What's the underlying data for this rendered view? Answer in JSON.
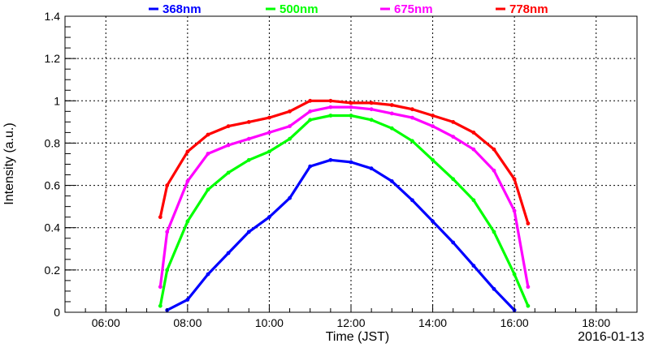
{
  "chart_data": {
    "type": "scatter",
    "title": "",
    "xlabel": "Time (JST)",
    "ylabel": "Intensity (a.u.)",
    "date_label": "2016-01-13",
    "xlim": [
      "05:00",
      "19:00"
    ],
    "ylim": [
      0,
      1.4
    ],
    "x_ticks": [
      "06:00",
      "08:00",
      "10:00",
      "12:00",
      "14:00",
      "16:00",
      "18:00"
    ],
    "y_ticks": [
      "0",
      "0.2",
      "0.4",
      "0.6",
      "0.8",
      "1",
      "1.2",
      "1.4"
    ],
    "grid": true,
    "legend_position": "top",
    "series": [
      {
        "name": "368nm",
        "color": "#0000ff",
        "x": [
          "07:30",
          "08:00",
          "08:30",
          "09:00",
          "09:30",
          "10:00",
          "10:30",
          "11:00",
          "11:30",
          "12:00",
          "12:30",
          "13:00",
          "13:30",
          "14:00",
          "14:30",
          "15:00",
          "15:30",
          "16:00"
        ],
        "y": [
          0.01,
          0.06,
          0.18,
          0.28,
          0.38,
          0.45,
          0.54,
          0.69,
          0.72,
          0.71,
          0.68,
          0.62,
          0.53,
          0.43,
          0.33,
          0.22,
          0.11,
          0.01
        ]
      },
      {
        "name": "500nm",
        "color": "#00ff00",
        "x": [
          "07:20",
          "07:30",
          "08:00",
          "08:30",
          "09:00",
          "09:30",
          "10:00",
          "10:30",
          "11:00",
          "11:30",
          "12:00",
          "12:30",
          "13:00",
          "13:30",
          "14:00",
          "14:30",
          "15:00",
          "15:30",
          "16:00",
          "16:20"
        ],
        "y": [
          0.03,
          0.2,
          0.43,
          0.58,
          0.66,
          0.72,
          0.76,
          0.82,
          0.91,
          0.93,
          0.93,
          0.91,
          0.87,
          0.81,
          0.72,
          0.63,
          0.53,
          0.38,
          0.18,
          0.03
        ]
      },
      {
        "name": "675nm",
        "color": "#ff00ff",
        "x": [
          "07:20",
          "07:30",
          "08:00",
          "08:30",
          "09:00",
          "09:30",
          "10:00",
          "10:30",
          "11:00",
          "11:30",
          "12:00",
          "12:30",
          "13:00",
          "13:30",
          "14:00",
          "14:30",
          "15:00",
          "15:30",
          "16:00",
          "16:20"
        ],
        "y": [
          0.12,
          0.38,
          0.62,
          0.75,
          0.79,
          0.82,
          0.85,
          0.88,
          0.95,
          0.97,
          0.97,
          0.96,
          0.94,
          0.92,
          0.88,
          0.83,
          0.77,
          0.67,
          0.48,
          0.12
        ]
      },
      {
        "name": "778nm",
        "color": "#ff0000",
        "x": [
          "07:20",
          "07:30",
          "08:00",
          "08:30",
          "09:00",
          "09:30",
          "10:00",
          "10:30",
          "11:00",
          "11:30",
          "12:00",
          "12:30",
          "13:00",
          "13:30",
          "14:00",
          "14:30",
          "15:00",
          "15:30",
          "16:00",
          "16:20"
        ],
        "y": [
          0.45,
          0.6,
          0.76,
          0.84,
          0.88,
          0.9,
          0.92,
          0.95,
          1.0,
          1.0,
          0.99,
          0.99,
          0.98,
          0.96,
          0.93,
          0.9,
          0.85,
          0.77,
          0.63,
          0.42
        ]
      }
    ]
  }
}
